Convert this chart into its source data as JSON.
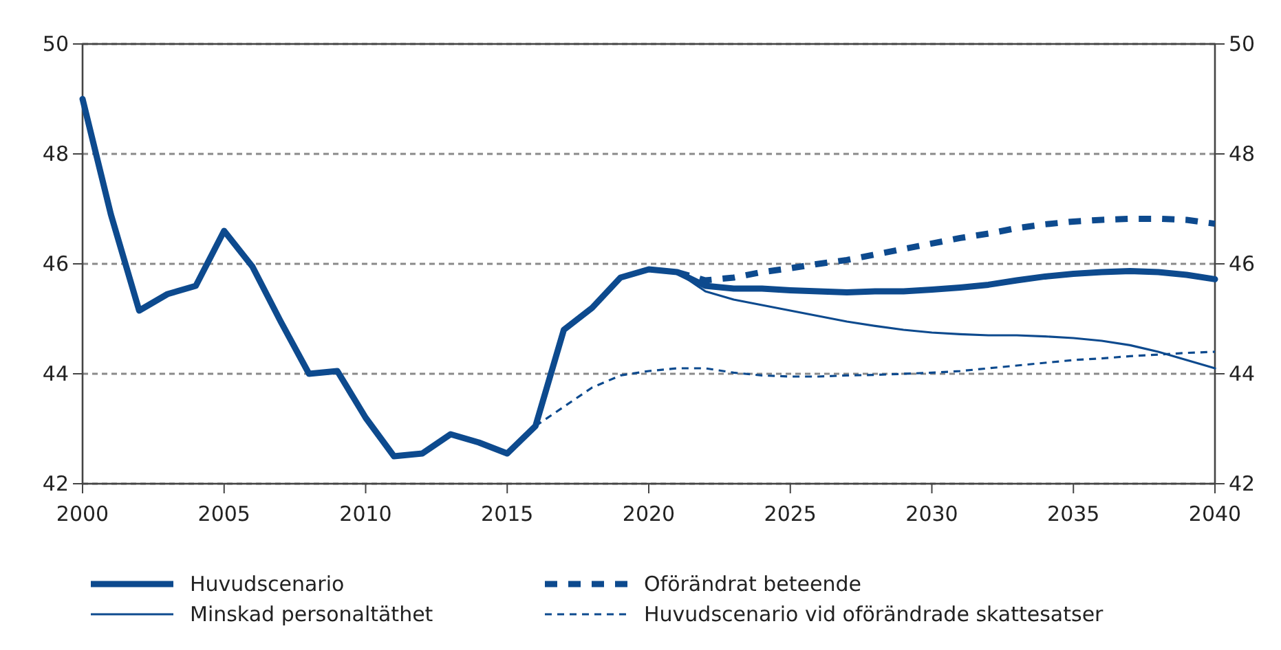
{
  "chart_data": {
    "type": "line",
    "xlim": [
      2000,
      2040
    ],
    "xticks": [
      2000,
      2005,
      2010,
      2015,
      2020,
      2025,
      2030,
      2035,
      2040
    ],
    "ylim": [
      42,
      50
    ],
    "yticks": [
      42,
      44,
      46,
      48,
      50
    ],
    "y2lim": [
      42,
      50
    ],
    "y2ticks": [
      42,
      44,
      46,
      48,
      50
    ],
    "grid": "y",
    "legend": "bottom",
    "marker": "none",
    "series": [
      {
        "name": "Huvudscenario",
        "color": "#0d4a8e",
        "line_style": "solid",
        "x": [
          2000,
          2001,
          2002,
          2003,
          2004,
          2005,
          2006,
          2007,
          2008,
          2009,
          2010,
          2011,
          2012,
          2013,
          2014,
          2015,
          2016,
          2017,
          2018,
          2019,
          2020,
          2021,
          2022,
          2023,
          2024,
          2025,
          2026,
          2027,
          2028,
          2029,
          2030,
          2031,
          2032,
          2033,
          2034,
          2035,
          2036,
          2037,
          2038,
          2039,
          2040
        ],
        "values": [
          49.0,
          46.9,
          45.15,
          45.45,
          45.6,
          46.6,
          45.95,
          44.95,
          44.0,
          44.05,
          43.2,
          42.5,
          42.55,
          42.9,
          42.75,
          42.55,
          43.05,
          44.8,
          45.2,
          45.75,
          45.9,
          45.85,
          45.6,
          45.55,
          45.55,
          45.52,
          45.5,
          45.48,
          45.5,
          45.5,
          45.53,
          45.57,
          45.62,
          45.7,
          45.77,
          45.82,
          45.85,
          45.87,
          45.85,
          45.8,
          45.72
        ]
      },
      {
        "name": "Minskad personaltäthet",
        "color": "#0d4a8e",
        "line_style": "solid",
        "x": [
          2021,
          2022,
          2023,
          2024,
          2025,
          2026,
          2027,
          2028,
          2029,
          2030,
          2031,
          2032,
          2033,
          2034,
          2035,
          2036,
          2037,
          2038,
          2039,
          2040
        ],
        "values": [
          45.85,
          45.5,
          45.35,
          45.25,
          45.15,
          45.05,
          44.95,
          44.87,
          44.8,
          44.75,
          44.72,
          44.7,
          44.7,
          44.68,
          44.65,
          44.6,
          44.52,
          44.4,
          44.25,
          44.1
        ]
      },
      {
        "name": "Oförändrat beteende",
        "color": "#0d4a8e",
        "line_style": "dashed",
        "x": [
          2021,
          2022,
          2023,
          2024,
          2025,
          2026,
          2027,
          2028,
          2029,
          2030,
          2031,
          2032,
          2033,
          2034,
          2035,
          2036,
          2037,
          2038,
          2039,
          2040
        ],
        "values": [
          45.85,
          45.7,
          45.75,
          45.85,
          45.92,
          46.0,
          46.07,
          46.17,
          46.27,
          46.37,
          46.47,
          46.55,
          46.65,
          46.72,
          46.77,
          46.8,
          46.82,
          46.82,
          46.8,
          46.73
        ]
      },
      {
        "name": "Huvudscenario vid oförändrade skattesatser",
        "color": "#0d4a8e",
        "line_style": "dashed",
        "x": [
          2016,
          2017,
          2018,
          2019,
          2020,
          2021,
          2022,
          2023,
          2024,
          2025,
          2026,
          2027,
          2028,
          2029,
          2030,
          2031,
          2032,
          2033,
          2034,
          2035,
          2036,
          2037,
          2038,
          2039,
          2040
        ],
        "values": [
          43.05,
          43.4,
          43.75,
          43.97,
          44.05,
          44.1,
          44.1,
          44.02,
          43.97,
          43.95,
          43.95,
          43.97,
          43.98,
          44.0,
          44.02,
          44.05,
          44.1,
          44.15,
          44.2,
          44.25,
          44.28,
          44.32,
          44.35,
          44.38,
          44.4
        ]
      }
    ]
  }
}
